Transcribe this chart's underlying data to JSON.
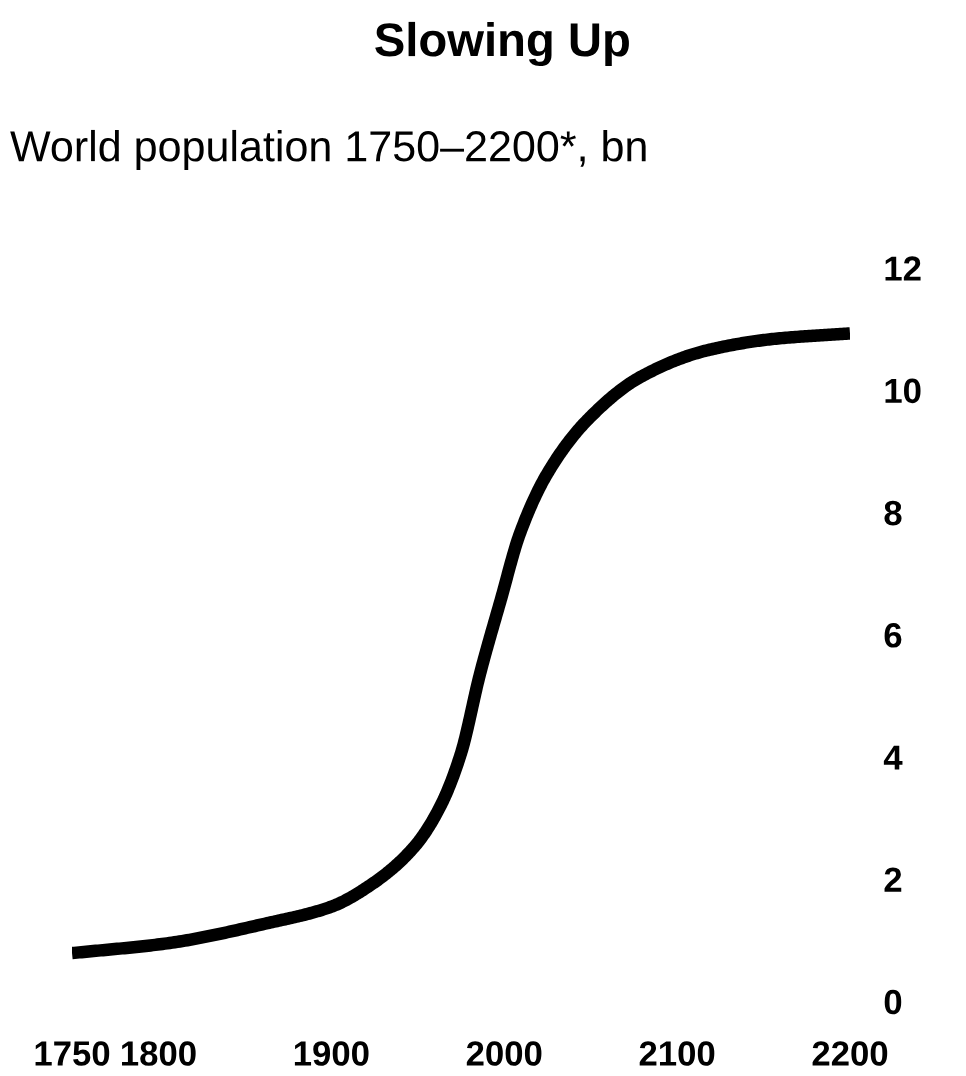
{
  "chart_data": {
    "type": "line",
    "title": "Slowing Up",
    "subtitle": "World population 1750–2200*, bn",
    "x": [
      1750,
      1805,
      1863,
      1900,
      1924,
      1948,
      1963,
      1975,
      1986,
      1998,
      2009,
      2025,
      2048,
      2079,
      2117,
      2156,
      2200
    ],
    "series": [
      {
        "color": "#000000",
        "values": [
          0.79,
          0.95,
          1.28,
          1.55,
          1.93,
          2.53,
          3.19,
          4.06,
          5.36,
          6.57,
          7.65,
          8.64,
          9.51,
          10.22,
          10.65,
          10.84,
          10.93
        ]
      }
    ],
    "xlim": [
      1750,
      2200
    ],
    "xticks": [
      1750,
      1800,
      1900,
      2000,
      2100,
      2200
    ],
    "ylim": [
      0,
      12
    ],
    "yticks": [
      0,
      2,
      4,
      6,
      8,
      10,
      12
    ],
    "grid": false,
    "marker": "none",
    "line_style": "solid"
  }
}
